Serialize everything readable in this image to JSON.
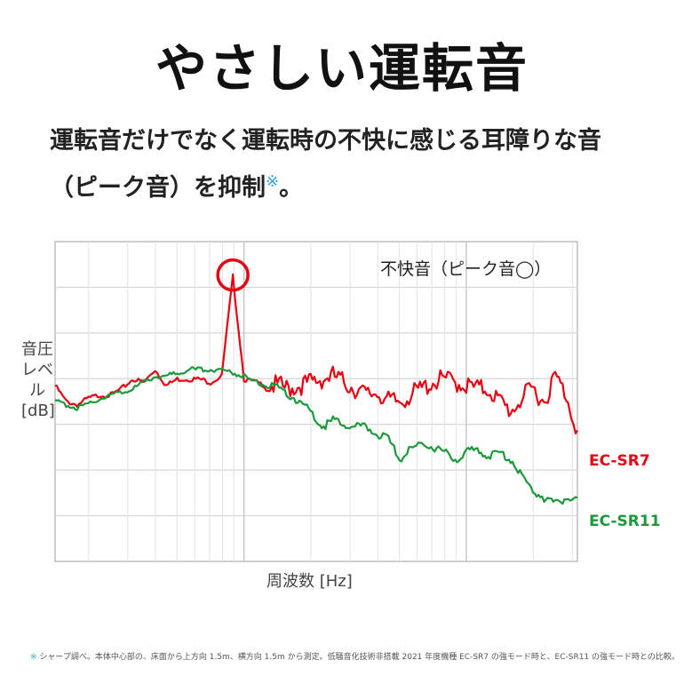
{
  "title": "やさしい運転音",
  "lead": {
    "line1": "運転音だけでなく運転時の不快に感じる耳障りな音",
    "line2": "（ピーク音）を抑制",
    "mark": "※",
    "tail": "。"
  },
  "chart_data": {
    "type": "line",
    "xlabel": "周波数 [Hz]",
    "ylabel": "音圧レベル[dB]",
    "annotation": "不快音（ピーク音◯）",
    "grid": true,
    "log_x": true,
    "series": [
      {
        "name": "EC-SR7",
        "color": "#e60012",
        "values": [
          55,
          50,
          49,
          51,
          52,
          52,
          54,
          57,
          56,
          60,
          55,
          57,
          57,
          57,
          56,
          58,
          89,
          57,
          56,
          55,
          55,
          54,
          55,
          56,
          57,
          58,
          56,
          54,
          52,
          53,
          50,
          50,
          52,
          54,
          56,
          57,
          56,
          55,
          54,
          54,
          50,
          47,
          51,
          54,
          50,
          58,
          52,
          41
        ]
      },
      {
        "name": "EC-SR11",
        "color": "#1a9a3a",
        "values": [
          50,
          49,
          48,
          49,
          51,
          52,
          53,
          54,
          56,
          58,
          58,
          59,
          60,
          60,
          60,
          60,
          59,
          58,
          56,
          55,
          54,
          52,
          50,
          47,
          42,
          44,
          43,
          42,
          42,
          40,
          38,
          32,
          35,
          37,
          36,
          34,
          32,
          34,
          35,
          33,
          34,
          32,
          27,
          22,
          20,
          18,
          20,
          20
        ]
      }
    ]
  },
  "legend": {
    "red": "EC-SR7",
    "green": "EC-SR11"
  },
  "footnote": {
    "mark": "※",
    "text": "シャープ調べ。本体中心部の、床面から上方向 1.5m、横方向 1.5m から測定。低騒音化技術非搭載 2021 年度機種 EC-SR7 の強モード時と、EC-SR11 の強モード時との比較。"
  },
  "colors": {
    "red": "#e60012",
    "green": "#1a9a3a",
    "grid": "#d6d6d6",
    "mark": "#29a6d9"
  }
}
